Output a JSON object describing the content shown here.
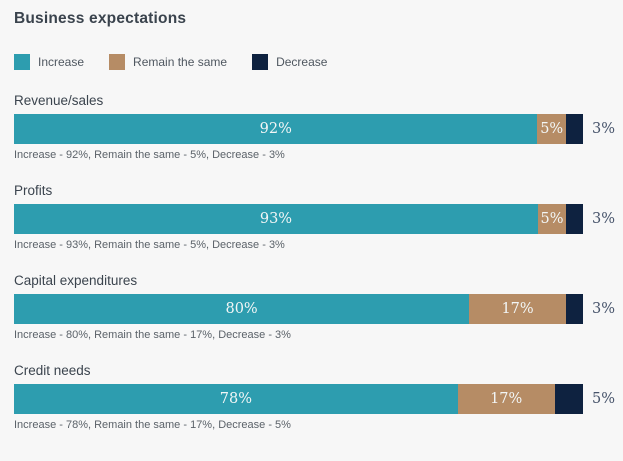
{
  "title": "Business expectations",
  "colors": {
    "background": "#f7f7f7",
    "increase": "#2d9daf",
    "remain_the_same": "#b68c65",
    "decrease": "#0e2240"
  },
  "legend": {
    "items": [
      "Increase",
      "Remain the same",
      "Decrease"
    ]
  },
  "chart_data": {
    "type": "bar",
    "orientation": "horizontal",
    "stacked": true,
    "unit": "%",
    "title": "Business expectations",
    "legend_position": "top",
    "grid": false,
    "xlim": [
      0,
      100
    ],
    "categories": [
      "Revenue/sales",
      "Profits",
      "Capital expenditures",
      "Credit needs"
    ],
    "series": [
      {
        "name": "Increase",
        "color": "#2d9daf",
        "values": [
          92,
          93,
          80,
          78
        ],
        "label_position": "inside"
      },
      {
        "name": "Remain the same",
        "color": "#b68c65",
        "values": [
          5,
          5,
          17,
          17
        ],
        "label_position": "inside"
      },
      {
        "name": "Decrease",
        "color": "#0e2240",
        "values": [
          3,
          3,
          3,
          5
        ],
        "label_position": "outside"
      }
    ],
    "captions": [
      "Increase - 92%, Remain the same - 5%, Decrease - 3%",
      "Increase - 93%, Remain the same - 5%, Decrease - 3%",
      "Increase - 80%, Remain the same - 17%, Decrease - 3%",
      "Increase - 78%, Remain the same - 17%, Decrease - 5%"
    ]
  }
}
